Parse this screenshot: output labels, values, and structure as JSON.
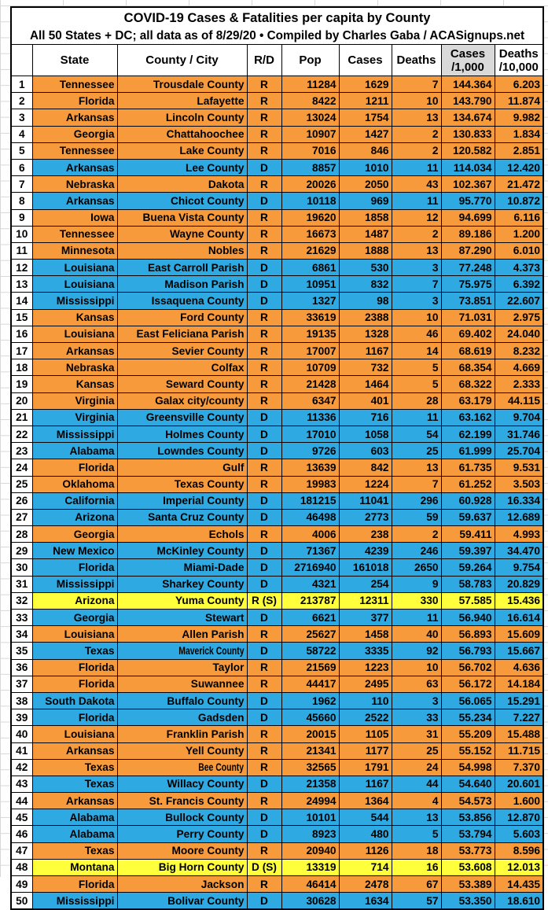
{
  "title": "COVID-19 Cases & Fatalities per capita by County",
  "subtitle": "All 50 States + DC; all data as of 8/29/20 • Compiled by Charles Gaba / ACASignups.net",
  "colors": {
    "republican_row": "#f79a3c",
    "democrat_row": "#2fa9e1",
    "split_row": "#ffff3c",
    "shaded_header": "#d9d9d9",
    "border": "#000000"
  },
  "chart_data": {
    "type": "table",
    "title": "COVID-19 Cases & Fatalities per capita by County",
    "subtitle": "All 50 States + DC; all data as of 8/29/20 • Compiled by Charles Gaba / ACASignups.net",
    "columns": [
      "",
      "State",
      "County / City",
      "R/D",
      "Pop",
      "Cases",
      "Deaths",
      "Cases\n/1,000",
      "Deaths\n/10,000"
    ],
    "row_format": [
      "rank",
      "state",
      "county_city",
      "party",
      "pop",
      "cases",
      "deaths",
      "cases_per_1000",
      "deaths_per_10000",
      "color_code"
    ],
    "color_code_legend": {
      "R": "republican_row",
      "D": "democrat_row",
      "S": "split_row"
    },
    "narrow_county_rows": [
      35,
      42
    ],
    "rows": [
      [
        1,
        "Tennessee",
        "Trousdale County",
        "R",
        11284,
        1629,
        7,
        "144.364",
        "6.203",
        "R"
      ],
      [
        2,
        "Florida",
        "Lafayette",
        "R",
        8422,
        1211,
        10,
        "143.790",
        "11.874",
        "R"
      ],
      [
        3,
        "Arkansas",
        "Lincoln County",
        "R",
        13024,
        1754,
        13,
        "134.674",
        "9.982",
        "R"
      ],
      [
        4,
        "Georgia",
        "Chattahoochee",
        "R",
        10907,
        1427,
        2,
        "130.833",
        "1.834",
        "R"
      ],
      [
        5,
        "Tennessee",
        "Lake County",
        "R",
        7016,
        846,
        2,
        "120.582",
        "2.851",
        "R"
      ],
      [
        6,
        "Arkansas",
        "Lee County",
        "D",
        8857,
        1010,
        11,
        "114.034",
        "12.420",
        "D"
      ],
      [
        7,
        "Nebraska",
        "Dakota",
        "R",
        20026,
        2050,
        43,
        "102.367",
        "21.472",
        "R"
      ],
      [
        8,
        "Arkansas",
        "Chicot County",
        "D",
        10118,
        969,
        11,
        "95.770",
        "10.872",
        "D"
      ],
      [
        9,
        "Iowa",
        "Buena Vista County",
        "R",
        19620,
        1858,
        12,
        "94.699",
        "6.116",
        "R"
      ],
      [
        10,
        "Tennessee",
        "Wayne County",
        "R",
        16673,
        1487,
        2,
        "89.186",
        "1.200",
        "R"
      ],
      [
        11,
        "Minnesota",
        "Nobles",
        "R",
        21629,
        1888,
        13,
        "87.290",
        "6.010",
        "R"
      ],
      [
        12,
        "Louisiana",
        "East Carroll Parish",
        "D",
        6861,
        530,
        3,
        "77.248",
        "4.373",
        "D"
      ],
      [
        13,
        "Louisiana",
        "Madison Parish",
        "D",
        10951,
        832,
        7,
        "75.975",
        "6.392",
        "D"
      ],
      [
        14,
        "Mississippi",
        "Issaquena County",
        "D",
        1327,
        98,
        3,
        "73.851",
        "22.607",
        "D"
      ],
      [
        15,
        "Kansas",
        "Ford County",
        "R",
        33619,
        2388,
        10,
        "71.031",
        "2.975",
        "R"
      ],
      [
        16,
        "Louisiana",
        "East Feliciana Parish",
        "R",
        19135,
        1328,
        46,
        "69.402",
        "24.040",
        "R"
      ],
      [
        17,
        "Arkansas",
        "Sevier County",
        "R",
        17007,
        1167,
        14,
        "68.619",
        "8.232",
        "R"
      ],
      [
        18,
        "Nebraska",
        "Colfax",
        "R",
        10709,
        732,
        5,
        "68.354",
        "4.669",
        "R"
      ],
      [
        19,
        "Kansas",
        "Seward County",
        "R",
        21428,
        1464,
        5,
        "68.322",
        "2.333",
        "R"
      ],
      [
        20,
        "Virginia",
        "Galax city/county",
        "R",
        6347,
        401,
        28,
        "63.179",
        "44.115",
        "R"
      ],
      [
        21,
        "Virginia",
        "Greensville County",
        "D",
        11336,
        716,
        11,
        "63.162",
        "9.704",
        "D"
      ],
      [
        22,
        "Mississippi",
        "Holmes County",
        "D",
        17010,
        1058,
        54,
        "62.199",
        "31.746",
        "D"
      ],
      [
        23,
        "Alabama",
        "Lowndes County",
        "D",
        9726,
        603,
        25,
        "61.999",
        "25.704",
        "D"
      ],
      [
        24,
        "Florida",
        "Gulf",
        "R",
        13639,
        842,
        13,
        "61.735",
        "9.531",
        "R"
      ],
      [
        25,
        "Oklahoma",
        "Texas County",
        "R",
        19983,
        1224,
        7,
        "61.252",
        "3.503",
        "R"
      ],
      [
        26,
        "California",
        "Imperial County",
        "D",
        181215,
        11041,
        296,
        "60.928",
        "16.334",
        "D"
      ],
      [
        27,
        "Arizona",
        "Santa Cruz County",
        "D",
        46498,
        2773,
        59,
        "59.637",
        "12.689",
        "D"
      ],
      [
        28,
        "Georgia",
        "Echols",
        "R",
        4006,
        238,
        2,
        "59.411",
        "4.993",
        "R"
      ],
      [
        29,
        "New Mexico",
        "McKinley County",
        "D",
        71367,
        4239,
        246,
        "59.397",
        "34.470",
        "D"
      ],
      [
        30,
        "Florida",
        "Miami-Dade",
        "D",
        2716940,
        161018,
        2650,
        "59.264",
        "9.754",
        "D"
      ],
      [
        31,
        "Mississippi",
        "Sharkey County",
        "D",
        4321,
        254,
        9,
        "58.783",
        "20.829",
        "D"
      ],
      [
        32,
        "Arizona",
        "Yuma County",
        "R (S)",
        213787,
        12311,
        330,
        "57.585",
        "15.436",
        "S"
      ],
      [
        33,
        "Georgia",
        "Stewart",
        "D",
        6621,
        377,
        11,
        "56.940",
        "16.614",
        "D"
      ],
      [
        34,
        "Louisiana",
        "Allen Parish",
        "R",
        25627,
        1458,
        40,
        "56.893",
        "15.609",
        "R"
      ],
      [
        35,
        "Texas",
        "Maverick County",
        "D",
        58722,
        3335,
        92,
        "56.793",
        "15.667",
        "D"
      ],
      [
        36,
        "Florida",
        "Taylor",
        "R",
        21569,
        1223,
        10,
        "56.702",
        "4.636",
        "R"
      ],
      [
        37,
        "Florida",
        "Suwannee",
        "R",
        44417,
        2495,
        63,
        "56.172",
        "14.184",
        "R"
      ],
      [
        38,
        "South Dakota",
        "Buffalo County",
        "D",
        1962,
        110,
        3,
        "56.065",
        "15.291",
        "D"
      ],
      [
        39,
        "Florida",
        "Gadsden",
        "D",
        45660,
        2522,
        33,
        "55.234",
        "7.227",
        "D"
      ],
      [
        40,
        "Louisiana",
        "Franklin Parish",
        "R",
        20015,
        1105,
        31,
        "55.209",
        "15.488",
        "R"
      ],
      [
        41,
        "Arkansas",
        "Yell County",
        "R",
        21341,
        1177,
        25,
        "55.152",
        "11.715",
        "R"
      ],
      [
        42,
        "Texas",
        "Bee County",
        "R",
        32565,
        1791,
        24,
        "54.998",
        "7.370",
        "R"
      ],
      [
        43,
        "Texas",
        "Willacy County",
        "D",
        21358,
        1167,
        44,
        "54.640",
        "20.601",
        "D"
      ],
      [
        44,
        "Arkansas",
        "St. Francis County",
        "R",
        24994,
        1364,
        4,
        "54.573",
        "1.600",
        "R"
      ],
      [
        45,
        "Alabama",
        "Bullock County",
        "D",
        10101,
        544,
        13,
        "53.856",
        "12.870",
        "D"
      ],
      [
        46,
        "Alabama",
        "Perry County",
        "D",
        8923,
        480,
        5,
        "53.794",
        "5.603",
        "D"
      ],
      [
        47,
        "Texas",
        "Moore County",
        "R",
        20940,
        1126,
        18,
        "53.773",
        "8.596",
        "R"
      ],
      [
        48,
        "Montana",
        "Big Horn County",
        "D (S)",
        13319,
        714,
        16,
        "53.608",
        "12.013",
        "S"
      ],
      [
        49,
        "Florida",
        "Jackson",
        "R",
        46414,
        2478,
        67,
        "53.389",
        "14.435",
        "R"
      ],
      [
        50,
        "Mississippi",
        "Bolivar County",
        "D",
        30628,
        1634,
        57,
        "53.350",
        "18.610",
        "D"
      ]
    ]
  }
}
